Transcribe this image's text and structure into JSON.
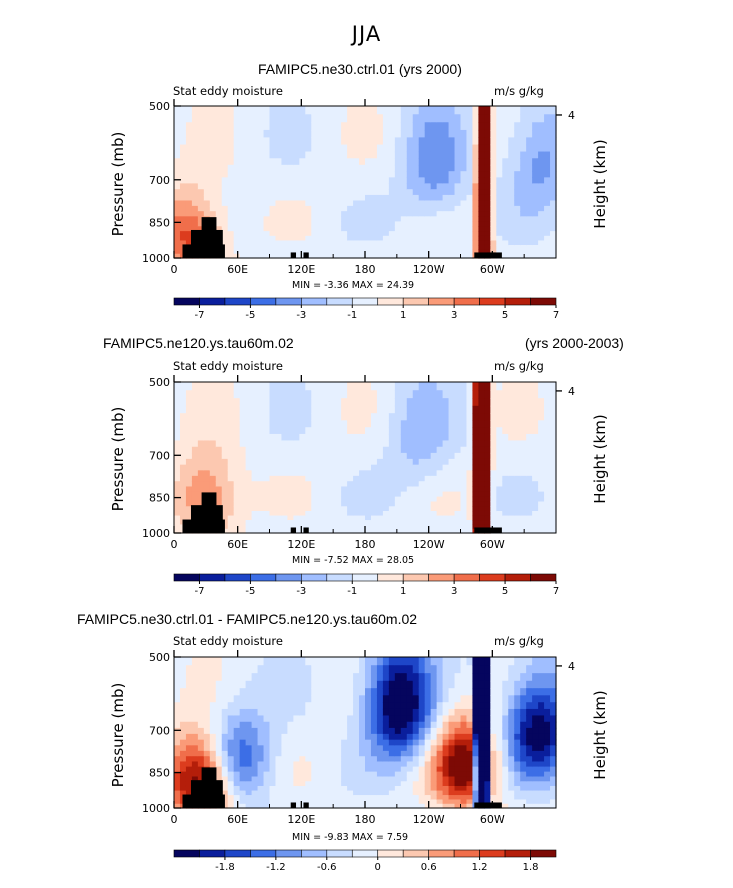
{
  "page": {
    "title": "JJA"
  },
  "chart_data": [
    {
      "type": "heatmap",
      "title": "FAMIPC5.ne30.ctrl.01 (yrs 2000)",
      "left_label": "Stat eddy moisture",
      "right_label": "m/s g/kg",
      "ylabel": "Pressure (mb)",
      "y2label": "Height (km)",
      "yticks": [
        "500",
        "700",
        "850",
        "1000"
      ],
      "ytick_values": [
        500,
        700,
        850,
        1000
      ],
      "y2ticks": [
        "4"
      ],
      "y2tick_values": [
        4
      ],
      "xticks": [
        "0",
        "60E",
        "120E",
        "180",
        "120W",
        "60W"
      ],
      "xtick_values": [
        0,
        60,
        120,
        180,
        240,
        300
      ],
      "xlim": [
        0,
        360
      ],
      "ylim": [
        1000,
        500
      ],
      "min_text": "MIN =  -3.36  MAX =  24.39",
      "min": -3.36,
      "max": 24.39,
      "colorbar": {
        "labels": [
          "-7",
          "-5",
          "-3",
          "-1",
          "1",
          "3",
          "5",
          "7"
        ],
        "levels": [
          -7,
          -6,
          -5,
          -4,
          -3,
          -2,
          -1,
          0,
          1,
          2,
          3,
          4,
          5,
          6,
          7
        ]
      },
      "features": [
        {
          "lon": 292,
          "p": 820,
          "value": 24,
          "kind": "positive-peak"
        },
        {
          "lon": 15,
          "p": 900,
          "value": 5,
          "kind": "positive"
        },
        {
          "lon": 245,
          "p": 660,
          "value": -3,
          "kind": "negative"
        },
        {
          "lon": 345,
          "p": 640,
          "value": -3,
          "kind": "negative"
        }
      ]
    },
    {
      "type": "heatmap",
      "title": "FAMIPC5.ne120.ys.tau60m.02",
      "title_right": "(yrs 2000-2003)",
      "left_label": "Stat eddy moisture",
      "right_label": "m/s g/kg",
      "ylabel": "Pressure (mb)",
      "y2label": "Height (km)",
      "yticks": [
        "500",
        "700",
        "850",
        "1000"
      ],
      "ytick_values": [
        500,
        700,
        850,
        1000
      ],
      "y2ticks": [
        "4"
      ],
      "y2tick_values": [
        4
      ],
      "xticks": [
        "0",
        "60E",
        "120E",
        "180",
        "120W",
        "60W"
      ],
      "xtick_values": [
        0,
        60,
        120,
        180,
        240,
        300
      ],
      "xlim": [
        0,
        360
      ],
      "ylim": [
        1000,
        500
      ],
      "min_text": "MIN =  -7.52  MAX =  28.05",
      "min": -7.52,
      "max": 28.05,
      "colorbar": {
        "labels": [
          "-7",
          "-5",
          "-3",
          "-1",
          "1",
          "3",
          "5",
          "7"
        ],
        "levels": [
          -7,
          -6,
          -5,
          -4,
          -3,
          -2,
          -1,
          0,
          1,
          2,
          3,
          4,
          5,
          6,
          7
        ]
      },
      "features": [
        {
          "lon": 290,
          "p": 760,
          "value": 28,
          "kind": "positive-peak"
        },
        {
          "lon": 30,
          "p": 850,
          "value": 4,
          "kind": "positive"
        },
        {
          "lon": 230,
          "p": 640,
          "value": -2,
          "kind": "negative"
        }
      ]
    },
    {
      "type": "heatmap",
      "title": "FAMIPC5.ne30.ctrl.01 - FAMIPC5.ne120.ys.tau60m.02",
      "left_label": "Stat eddy moisture",
      "right_label": "m/s g/kg",
      "ylabel": "Pressure (mb)",
      "y2label": "Height (km)",
      "yticks": [
        "500",
        "700",
        "850",
        "1000"
      ],
      "ytick_values": [
        500,
        700,
        850,
        1000
      ],
      "y2ticks": [
        "4"
      ],
      "y2tick_values": [
        4
      ],
      "xticks": [
        "0",
        "60E",
        "120E",
        "180",
        "120W",
        "60W"
      ],
      "xtick_values": [
        0,
        60,
        120,
        180,
        240,
        300
      ],
      "xlim": [
        0,
        360
      ],
      "ylim": [
        1000,
        500
      ],
      "min_text": "MIN =  -9.83  MAX =    7.59",
      "min": -9.83,
      "max": 7.59,
      "colorbar": {
        "labels": [
          "-1.8",
          "-1.2",
          "-0.6",
          "0",
          "0.6",
          "1.2",
          "1.8"
        ],
        "levels": [
          -2.1,
          -1.8,
          -1.5,
          -1.2,
          -0.9,
          -0.6,
          -0.3,
          0,
          0.3,
          0.6,
          0.9,
          1.2,
          1.5,
          1.8,
          2.1
        ]
      },
      "features": [
        {
          "lon": 290,
          "p": 700,
          "value": -9.8,
          "kind": "negative-peak"
        },
        {
          "lon": 212,
          "p": 620,
          "value": -2.5,
          "kind": "negative"
        },
        {
          "lon": 343,
          "p": 700,
          "value": -2.2,
          "kind": "negative"
        },
        {
          "lon": 275,
          "p": 820,
          "value": 2.3,
          "kind": "positive"
        },
        {
          "lon": 25,
          "p": 880,
          "value": 2.5,
          "kind": "positive"
        },
        {
          "lon": 60,
          "p": 800,
          "value": -1.5,
          "kind": "negative"
        }
      ]
    }
  ]
}
